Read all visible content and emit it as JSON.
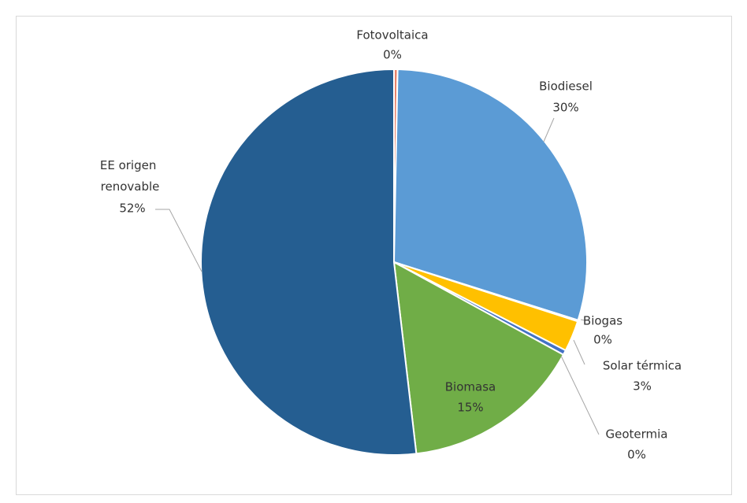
{
  "chart_data": {
    "type": "pie",
    "categories": [
      "Fotovoltaica",
      "Biodiesel",
      "Biogas",
      "Solar térmica",
      "Geotermia",
      "Biomasa",
      "EE origen renovable"
    ],
    "values": [
      0.3,
      29.6,
      0.1,
      2.6,
      0.4,
      15.2,
      51.9
    ],
    "value_labels": [
      "0%",
      "30%",
      "0%",
      "3%",
      "0%",
      "15%",
      "52%"
    ],
    "colors": [
      "#e8836a",
      "#5b9bd5",
      "#a5a5a5",
      "#ffc000",
      "#4472c4",
      "#70ad47",
      "#255e91"
    ]
  }
}
